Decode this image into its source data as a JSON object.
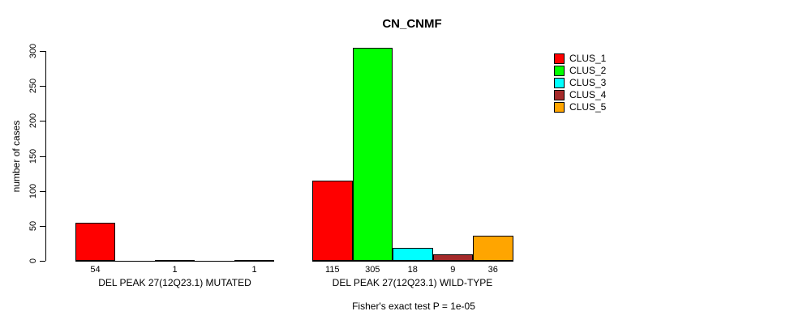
{
  "chart_data": {
    "type": "bar",
    "title": "CN_CNMF",
    "ylabel": "number of cases",
    "xlabel": "",
    "ylim": [
      0,
      300
    ],
    "yticks": [
      0,
      50,
      100,
      150,
      200,
      250,
      300
    ],
    "grid": false,
    "legend_position": "right-outside",
    "legend": [
      {
        "label": "CLUS_1",
        "color": "#FF0000"
      },
      {
        "label": "CLUS_2",
        "color": "#00FF00"
      },
      {
        "label": "CLUS_3",
        "color": "#00FFFF"
      },
      {
        "label": "CLUS_4",
        "color": "#A52A2A"
      },
      {
        "label": "CLUS_5",
        "color": "#FFA500"
      }
    ],
    "groups": [
      {
        "category": "DEL PEAK 27(12Q23.1) MUTATED",
        "bars": [
          {
            "cluster": "CLUS_1",
            "value": 54,
            "color": "#FF0000"
          },
          {
            "cluster": "CLUS_2",
            "value": 1,
            "color": "#00FF00"
          },
          {
            "cluster": "CLUS_3",
            "value": 1,
            "color": "#00FFFF"
          }
        ]
      },
      {
        "category": "DEL PEAK 27(12Q23.1) WILD-TYPE",
        "bars": [
          {
            "cluster": "CLUS_1",
            "value": 115,
            "color": "#FF0000"
          },
          {
            "cluster": "CLUS_2",
            "value": 305,
            "color": "#00FF00"
          },
          {
            "cluster": "CLUS_3",
            "value": 18,
            "color": "#00FFFF"
          },
          {
            "cluster": "CLUS_4",
            "value": 9,
            "color": "#A52A2A"
          },
          {
            "cluster": "CLUS_5",
            "value": 36,
            "color": "#FFA500"
          }
        ]
      }
    ],
    "annotation": "Fisher's exact test P = 1e-05"
  }
}
